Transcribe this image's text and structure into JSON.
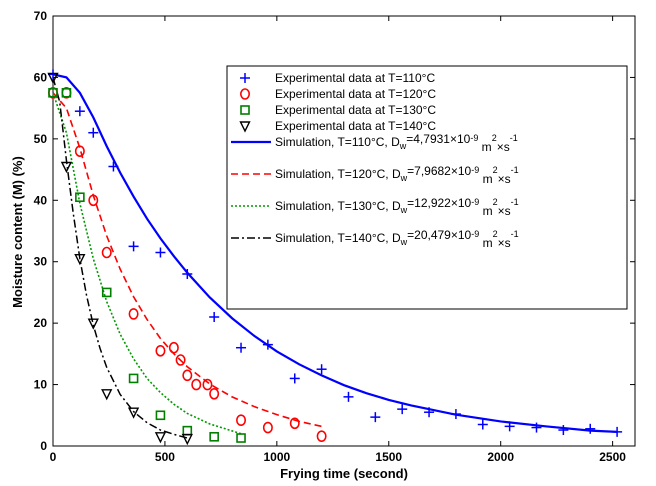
{
  "chart_data": {
    "type": "scatter",
    "xlabel": "Frying time (second)",
    "ylabel": "Moisture content (M) (%)",
    "xlim": [
      0,
      2600
    ],
    "ylim": [
      0,
      70
    ],
    "xticks": [
      0,
      500,
      1000,
      1500,
      2000,
      2500
    ],
    "yticks": [
      0,
      10,
      20,
      30,
      40,
      50,
      60,
      70
    ],
    "grid": false,
    "legend_position": "top-right",
    "series": [
      {
        "name": "Experimental data at T=110°C",
        "kind": "points",
        "marker": "plus",
        "color": "#0000ff",
        "x": [
          0,
          120,
          180,
          270,
          360,
          480,
          600,
          720,
          840,
          960,
          1080,
          1200,
          1320,
          1440,
          1560,
          1680,
          1800,
          1920,
          2040,
          2160,
          2280,
          2400,
          2520
        ],
        "y": [
          60.5,
          54.5,
          51,
          45.5,
          32.5,
          31.5,
          28,
          21,
          16,
          16.5,
          11,
          12.5,
          8,
          4.7,
          6,
          5.5,
          5.2,
          3.5,
          3.2,
          3,
          2.6,
          2.8,
          2.3
        ]
      },
      {
        "name": "Experimental data at T=120°C",
        "kind": "points",
        "marker": "circle",
        "color": "#ff0000",
        "x": [
          0,
          60,
          120,
          180,
          240,
          360,
          480,
          540,
          570,
          600,
          640,
          690,
          720,
          840,
          960,
          1080,
          1200
        ],
        "y": [
          57.5,
          57.5,
          48,
          40,
          31.5,
          21.5,
          15.5,
          16,
          14,
          11.5,
          10,
          10,
          8.5,
          4.2,
          3,
          3.7,
          1.6
        ]
      },
      {
        "name": "Experimental data at T=130°C",
        "kind": "points",
        "marker": "square",
        "color": "#007f00",
        "x": [
          0,
          60,
          120,
          240,
          360,
          480,
          600,
          720,
          840
        ],
        "y": [
          57.5,
          57.5,
          40.5,
          25,
          11,
          5,
          2.5,
          1.5,
          1.3
        ]
      },
      {
        "name": "Experimental data at T=140°C",
        "kind": "points",
        "marker": "triangle-down",
        "color": "#000000",
        "x": [
          0,
          60,
          120,
          180,
          240,
          360,
          480,
          600
        ],
        "y": [
          60,
          45.5,
          30.5,
          20,
          8.5,
          5.5,
          1.5,
          1.2
        ]
      },
      {
        "name": "Simulation, T=110°C, D",
        "name_sub": "w",
        "name_tail": "=4,7931×10",
        "name_sup": "-9",
        "name_unit": " m",
        "name_unit_sup": "2",
        "name_unit2": "×s",
        "name_unit2_sup": "-1",
        "kind": "line",
        "dash": "",
        "width": 2.2,
        "color": "#0000ff",
        "x": [
          0,
          60,
          120,
          180,
          240,
          300,
          360,
          420,
          480,
          540,
          600,
          700,
          800,
          900,
          1000,
          1100,
          1200,
          1300,
          1400,
          1500,
          1600,
          1800,
          2000,
          2200,
          2400,
          2520
        ],
        "y": [
          60.5,
          60,
          57.5,
          53.5,
          48.8,
          44.5,
          40.6,
          37.0,
          33.8,
          30.9,
          28.2,
          24.2,
          20.8,
          17.9,
          15.4,
          13.3,
          11.5,
          9.9,
          8.6,
          7.5,
          6.6,
          5.1,
          4.0,
          3.2,
          2.5,
          2.3
        ]
      },
      {
        "name": "Simulation, T=120°C, D",
        "name_sub": "w",
        "name_tail": "=7,9682×10",
        "name_sup": "-9",
        "name_unit": " m",
        "name_unit_sup": "2",
        "name_unit2": "×s",
        "name_unit2_sup": "-1",
        "kind": "line",
        "dash": "7,4",
        "width": 1.6,
        "color": "#ff0000",
        "x": [
          0,
          60,
          120,
          180,
          240,
          300,
          360,
          420,
          480,
          540,
          600,
          700,
          800,
          900,
          1000,
          1100,
          1200
        ],
        "y": [
          57.5,
          55,
          48.5,
          40.8,
          34.2,
          28.8,
          24.3,
          20.6,
          17.5,
          15.0,
          12.9,
          10.1,
          8.0,
          6.4,
          5.1,
          4.0,
          3.2
        ]
      },
      {
        "name": "Simulation, T=130°C, D",
        "name_sub": "w",
        "name_tail": "=12,922×10",
        "name_sup": "-9",
        "name_unit": " m",
        "name_unit_sup": "2",
        "name_unit2": "×s",
        "name_unit2_sup": "-1",
        "kind": "line",
        "dash": "2,2",
        "width": 1.6,
        "color": "#009900",
        "x": [
          0,
          60,
          120,
          180,
          240,
          300,
          360,
          420,
          480,
          540,
          600,
          700,
          840
        ],
        "y": [
          57.5,
          51,
          39.5,
          30.5,
          23.5,
          18.2,
          14.2,
          11.0,
          8.7,
          6.8,
          5.3,
          3.6,
          2.0
        ]
      },
      {
        "name": "Simulation, T=140°C, D",
        "name_sub": "w",
        "name_tail": "=20,479×10",
        "name_sup": "-9",
        "name_unit": " m",
        "name_unit_sup": "2",
        "name_unit2": "×s",
        "name_unit2_sup": "-1",
        "kind": "line",
        "dash": "8,3,2,3",
        "width": 1.5,
        "color": "#000000",
        "x": [
          0,
          30,
          60,
          90,
          120,
          150,
          180,
          210,
          240,
          300,
          360,
          420,
          480,
          540,
          600
        ],
        "y": [
          60,
          56,
          46.5,
          38,
          30.5,
          24.5,
          19.7,
          15.9,
          12.8,
          8.4,
          5.6,
          3.8,
          2.6,
          1.9,
          1.3
        ]
      }
    ]
  }
}
